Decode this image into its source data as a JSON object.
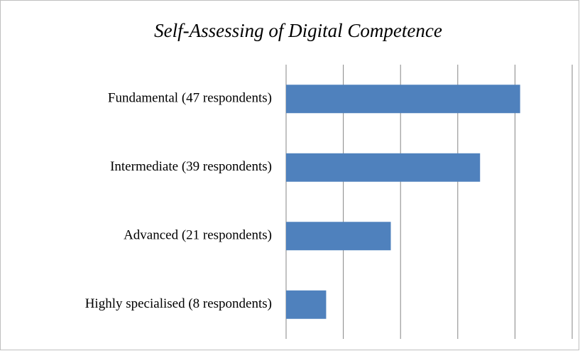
{
  "chart_data": {
    "type": "bar",
    "orientation": "horizontal",
    "title": "Self-Assessing of Digital Competence",
    "categories": [
      "Fundamental (47 respondents)",
      "Intermediate (39 respondents)",
      "Advanced (21 respondents)",
      "Highly specialised  (8 respondents)"
    ],
    "values": [
      40.9,
      33.9,
      18.3,
      7.0
    ],
    "color": "#4f81bd",
    "xlim": [
      0,
      50
    ],
    "xticks": [
      0,
      10,
      20,
      30,
      40,
      50
    ],
    "grid": true
  }
}
